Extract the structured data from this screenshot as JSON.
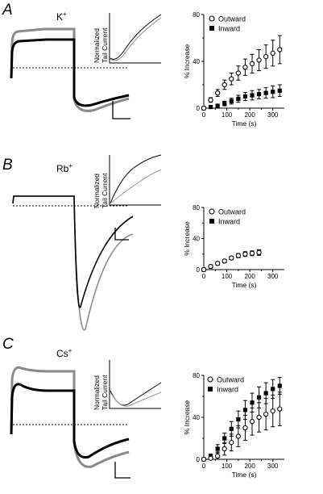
{
  "panels": [
    {
      "letter": "A",
      "ion": "K",
      "ion_sup": "+",
      "inset_label_1": "Normalized",
      "inset_label_2": "Tail Current",
      "chart_data": {
        "type": "scatter",
        "xlabel": "Time (s)",
        "ylabel": "% Increase",
        "xlim": [
          0,
          350
        ],
        "ylim": [
          0,
          80
        ],
        "xticks": [
          "0",
          "100",
          "200",
          "300"
        ],
        "yticks": [
          "0",
          "40",
          "80"
        ],
        "legend_position": "top-right",
        "series": [
          {
            "name": "Outward",
            "marker": "open-circle",
            "x": [
              0,
              30,
              60,
              90,
              120,
              150,
              180,
              210,
              240,
              270,
              300,
              330
            ],
            "y": [
              0,
              7,
              13,
              20,
              25,
              30,
              35,
              38,
              41,
              44,
              47,
              50
            ],
            "err": [
              1,
              2,
              3,
              4,
              5,
              6,
              7,
              8,
              9,
              10,
              11,
              12
            ]
          },
          {
            "name": "Inward",
            "marker": "filled-square",
            "x": [
              0,
              30,
              60,
              90,
              120,
              150,
              180,
              210,
              240,
              270,
              300,
              330
            ],
            "y": [
              0,
              1,
              2,
              4,
              6,
              8,
              10,
              11,
              12,
              13,
              14,
              15
            ],
            "err": [
              0.5,
              1,
              1.5,
              2,
              2.5,
              3,
              3.5,
              4,
              4,
              4.5,
              5,
              5
            ]
          }
        ]
      }
    },
    {
      "letter": "B",
      "ion": "Rb",
      "ion_sup": "+",
      "inset_label_1": "Normalized",
      "inset_label_2": "Tail Current",
      "chart_data": {
        "type": "scatter",
        "xlabel": "Time (s)",
        "ylabel": "% Increase",
        "xlim": [
          0,
          350
        ],
        "ylim": [
          0,
          80
        ],
        "xticks": [
          "0",
          "100",
          "200",
          "300"
        ],
        "yticks": [
          "0",
          "40",
          "80"
        ],
        "legend_position": "top-right",
        "series": [
          {
            "name": "Outward",
            "marker": "open-circle",
            "x": [
              0,
              30,
              60,
              90,
              120,
              150,
              180,
              210,
              240
            ],
            "y": [
              0,
              4,
              8,
              11,
              15,
              18,
              20,
              21,
              22
            ],
            "err": [
              1,
              1,
              1.5,
              2,
              2,
              2.5,
              3,
              3,
              3.5
            ]
          },
          {
            "name": "Inward",
            "marker": "filled-square",
            "x": [
              0,
              30,
              60,
              90,
              120,
              150,
              180,
              210,
              240
            ],
            "y": [
              0,
              4,
              8,
              11,
              15,
              18,
              20,
              21,
              22
            ],
            "err": [
              1,
              1,
              1.5,
              2,
              2,
              2.5,
              3,
              3,
              3.5
            ]
          }
        ]
      }
    },
    {
      "letter": "C",
      "ion": "Cs",
      "ion_sup": "+",
      "inset_label_1": "Normalized",
      "inset_label_2": "Tail Current",
      "chart_data": {
        "type": "scatter",
        "xlabel": "Time (s)",
        "ylabel": "% Increase",
        "xlim": [
          0,
          350
        ],
        "ylim": [
          0,
          80
        ],
        "xticks": [
          "0",
          "100",
          "200",
          "300"
        ],
        "yticks": [
          "0",
          "40",
          "80"
        ],
        "legend_position": "top-left",
        "series": [
          {
            "name": "Outward",
            "marker": "open-circle",
            "x": [
              0,
              30,
              60,
              90,
              120,
              150,
              180,
              210,
              240,
              270,
              300,
              330
            ],
            "y": [
              0,
              1,
              3,
              10,
              16,
              22,
              30,
              36,
              40,
              43,
              46,
              48
            ],
            "err": [
              1,
              2,
              4,
              6,
              8,
              10,
              12,
              13,
              14,
              15,
              15,
              16
            ]
          },
          {
            "name": "Inward",
            "marker": "filled-square",
            "x": [
              0,
              30,
              60,
              90,
              120,
              150,
              180,
              210,
              240,
              270,
              300,
              330
            ],
            "y": [
              0,
              3,
              10,
              20,
              29,
              38,
              47,
              54,
              59,
              63,
              67,
              70
            ],
            "err": [
              1,
              2,
              4,
              5,
              7,
              8,
              9,
              9,
              10,
              10,
              9,
              8
            ]
          }
        ]
      }
    }
  ]
}
